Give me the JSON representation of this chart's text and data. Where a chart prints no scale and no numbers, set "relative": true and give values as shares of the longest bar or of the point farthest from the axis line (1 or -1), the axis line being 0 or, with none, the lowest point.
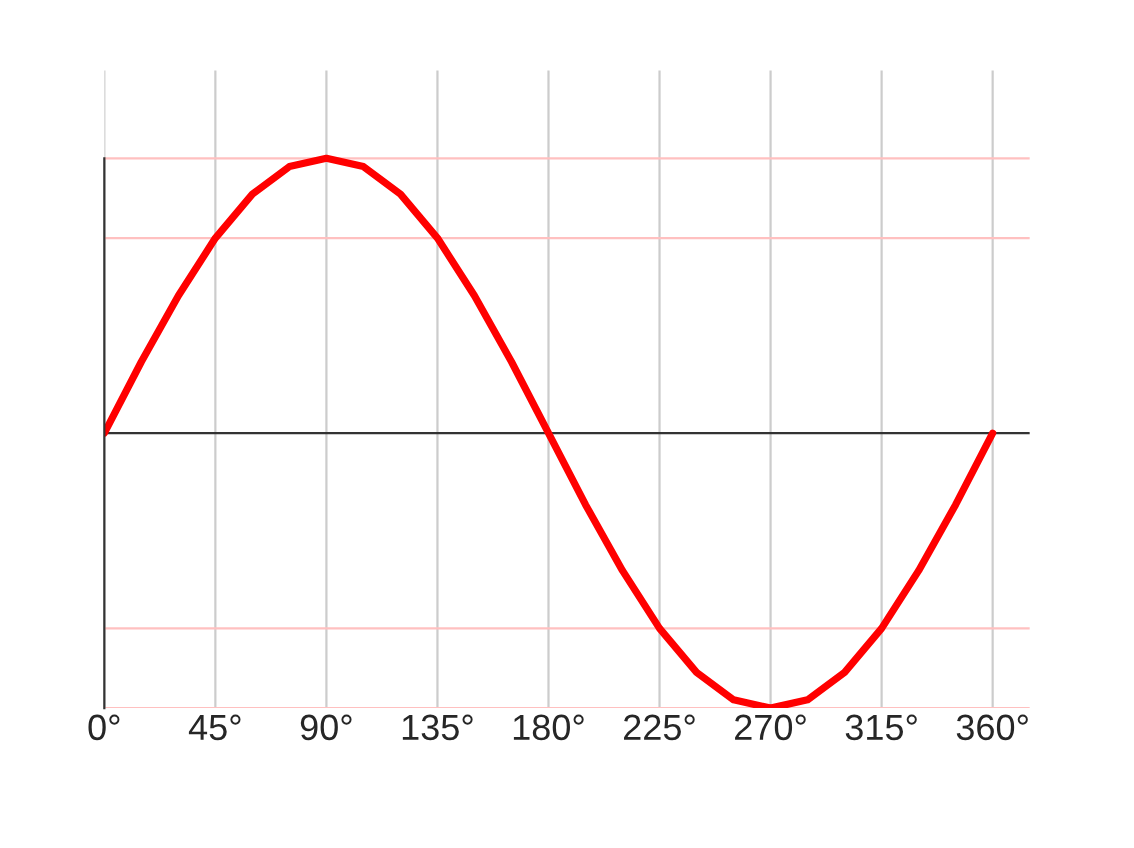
{
  "chart_data": {
    "type": "line",
    "relative": true,
    "x": [
      0,
      15,
      30,
      45,
      60,
      75,
      90,
      105,
      120,
      135,
      150,
      165,
      180,
      195,
      210,
      225,
      240,
      255,
      270,
      285,
      300,
      315,
      330,
      345,
      360
    ],
    "series": [
      {
        "color": "#ff0000",
        "values": [
          0,
          0.26,
          0.5,
          0.71,
          0.87,
          0.97,
          1,
          0.97,
          0.87,
          0.71,
          0.5,
          0.26,
          0,
          -0.26,
          -0.5,
          -0.71,
          -0.87,
          -0.97,
          -1,
          -0.97,
          -0.87,
          -0.71,
          -0.5,
          -0.26,
          0
        ]
      }
    ],
    "xlim": [
      0,
      375
    ],
    "xticks": [
      {
        "value": 0,
        "label": "0°"
      },
      {
        "value": 45,
        "label": "45°"
      },
      {
        "value": 90,
        "label": "90°"
      },
      {
        "value": 135,
        "label": "135°"
      },
      {
        "value": 180,
        "label": "180°"
      },
      {
        "value": 225,
        "label": "225°"
      },
      {
        "value": 270,
        "label": "270°"
      },
      {
        "value": 315,
        "label": "315°"
      },
      {
        "value": 360,
        "label": "360°"
      }
    ],
    "grid": "x",
    "ref_lines": [
      {
        "axis": "y",
        "value": 1,
        "color": "#ffc0c0"
      },
      {
        "axis": "y",
        "value": 0.71,
        "color": "#ffc0c0"
      },
      {
        "axis": "y",
        "value": 0,
        "color": "#333333"
      },
      {
        "axis": "y",
        "value": -0.71,
        "color": "#ffc0c0"
      },
      {
        "axis": "y",
        "value": -1,
        "color": "#ffc0c0"
      }
    ],
    "marker": "none",
    "line_style": "solid"
  }
}
